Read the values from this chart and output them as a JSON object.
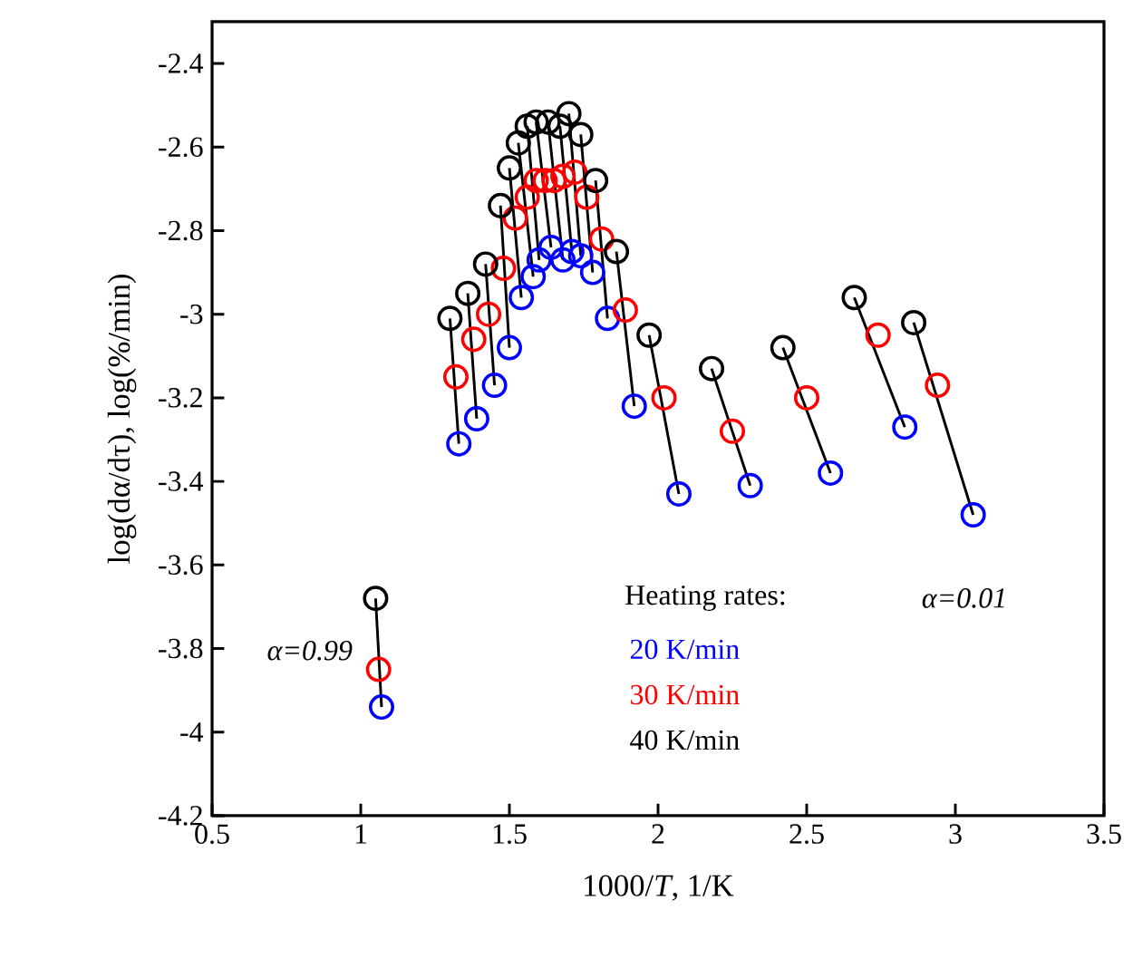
{
  "chart_data": {
    "type": "scatter",
    "xlabel": "1000/*T*, 1/K",
    "ylabel": "log(dα/dτ), log(%/min)",
    "annotations": [
      "Heating rates:",
      "α=0.01",
      "α=0.99"
    ],
    "xlim": [
      0.5,
      3.5
    ],
    "xticks": [
      0.5,
      1,
      1.5,
      2,
      2.5,
      3,
      3.5
    ],
    "ylim": [
      -4.2,
      -2.3
    ],
    "yticks": [
      -4.2,
      -4,
      -3.8,
      -3.6,
      -3.4,
      -3.2,
      -3,
      -2.8,
      -2.6,
      -2.4
    ],
    "grid": false,
    "marker": "circle",
    "legend": "bottom right",
    "series": [
      {
        "name": "20 K/min",
        "color": "#0000ff",
        "x": [
          1.07,
          1.33,
          1.39,
          1.45,
          1.5,
          1.54,
          1.58,
          1.6,
          1.64,
          1.68,
          1.71,
          1.74,
          1.78,
          1.83,
          1.92,
          2.07,
          2.31,
          2.58,
          2.83,
          3.06
        ],
        "values": [
          -3.94,
          -3.31,
          -3.25,
          -3.17,
          -3.08,
          -2.96,
          -2.91,
          -2.87,
          -2.84,
          -2.87,
          -2.85,
          -2.86,
          -2.9,
          -3.01,
          -3.22,
          -3.43,
          -3.41,
          -3.38,
          -3.27,
          -3.48
        ]
      },
      {
        "name": "30 K/min",
        "color": "#ff0000",
        "x": [
          1.06,
          1.32,
          1.38,
          1.43,
          1.48,
          1.52,
          1.56,
          1.59,
          1.62,
          1.65,
          1.68,
          1.72,
          1.76,
          1.81,
          1.89,
          2.02,
          2.25,
          2.5,
          2.74,
          2.94
        ],
        "values": [
          -3.85,
          -3.15,
          -3.06,
          -3.0,
          -2.89,
          -2.77,
          -2.72,
          -2.68,
          -2.68,
          -2.68,
          -2.67,
          -2.66,
          -2.72,
          -2.82,
          -2.99,
          -3.2,
          -3.28,
          -3.2,
          -3.05,
          -3.17
        ]
      },
      {
        "name": "40 K/min",
        "color": "#000000",
        "x": [
          1.05,
          1.3,
          1.36,
          1.42,
          1.47,
          1.5,
          1.53,
          1.56,
          1.59,
          1.63,
          1.67,
          1.7,
          1.74,
          1.79,
          1.86,
          1.97,
          2.18,
          2.42,
          2.66,
          2.86
        ],
        "values": [
          -3.68,
          -3.01,
          -2.95,
          -2.88,
          -2.74,
          -2.65,
          -2.59,
          -2.55,
          -2.54,
          -2.54,
          -2.55,
          -2.52,
          -2.57,
          -2.68,
          -2.85,
          -3.05,
          -3.13,
          -3.08,
          -2.96,
          -3.02
        ]
      },
      {
        "type": "line",
        "color": "#000000",
        "marker": "none",
        "x": [
          1.05,
          1.07,
          null,
          1.3,
          1.33,
          null,
          1.36,
          1.39,
          null,
          1.42,
          1.45,
          null,
          1.47,
          1.5,
          null,
          1.5,
          1.54,
          null,
          1.53,
          1.58,
          null,
          1.56,
          1.6,
          null,
          1.59,
          1.64,
          null,
          1.63,
          1.68,
          null,
          1.67,
          1.71,
          null,
          1.7,
          1.74,
          null,
          1.74,
          1.78,
          null,
          1.79,
          1.83,
          null,
          1.86,
          1.92,
          null,
          1.97,
          2.07,
          null,
          2.18,
          2.31,
          null,
          2.42,
          2.58,
          null,
          2.66,
          2.83,
          null,
          2.86,
          3.06
        ],
        "values": [
          -3.68,
          -3.94,
          null,
          -3.01,
          -3.31,
          null,
          -2.95,
          -3.25,
          null,
          -2.88,
          -3.17,
          null,
          -2.74,
          -3.08,
          null,
          -2.65,
          -2.96,
          null,
          -2.59,
          -2.91,
          null,
          -2.55,
          -2.87,
          null,
          -2.54,
          -2.84,
          null,
          -2.54,
          -2.87,
          null,
          -2.55,
          -2.85,
          null,
          -2.52,
          -2.86,
          null,
          -2.57,
          -2.9,
          null,
          -2.68,
          -3.01,
          null,
          -2.85,
          -3.22,
          null,
          -3.05,
          -3.43,
          null,
          -3.13,
          -3.41,
          null,
          -3.08,
          -3.38,
          null,
          -2.96,
          -3.27,
          null,
          -3.02,
          -3.48
        ]
      }
    ]
  }
}
